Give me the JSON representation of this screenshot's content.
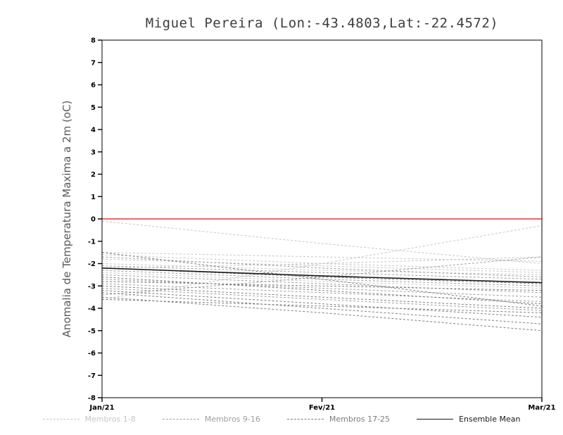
{
  "title": "Miguel Pereira (Lon:-43.4803,Lat:-22.4572)",
  "y_axis_label": "Anomalia de Temperatura Maxima a 2m (oC)",
  "chart_data": {
    "type": "line",
    "title": "Miguel Pereira (Lon:-43.4803,Lat:-22.4572)",
    "xlabel": "",
    "ylabel": "Anomalia de Temperatura Maxima a 2m (oC)",
    "x_tick_labels": [
      "Jan/21",
      "Fev/21",
      "Mar/21"
    ],
    "ylim": [
      -8,
      8
    ],
    "y_ticks": [
      8,
      7,
      6,
      5,
      4,
      3,
      2,
      1,
      0,
      -1,
      -2,
      -3,
      -4,
      -5,
      -6,
      -7,
      -8
    ],
    "grid": false,
    "legend_position": "bottom",
    "zero_line": {
      "y": 0,
      "color": "#e03a3a"
    },
    "frame_color": "#000000",
    "groups": [
      {
        "name": "Membros 1-8",
        "color": "#c6c6c6",
        "style": "dashed",
        "members": [
          [
            -0.1,
            -1.1,
            -2.0
          ],
          [
            -1.5,
            -1.7,
            -1.9
          ],
          [
            -1.6,
            -2.0,
            -2.3
          ],
          [
            -1.8,
            -2.1,
            -2.4
          ],
          [
            -2.0,
            -2.3,
            -2.5
          ],
          [
            -2.2,
            -2.0,
            -1.7
          ],
          [
            -2.4,
            -2.8,
            -3.1
          ],
          [
            -3.6,
            -2.0,
            -0.3
          ]
        ]
      },
      {
        "name": "Membros 9-16",
        "color": "#9e9e9e",
        "style": "dashed",
        "members": [
          [
            -1.7,
            -2.2,
            -2.6
          ],
          [
            -2.1,
            -2.4,
            -2.7
          ],
          [
            -2.3,
            -2.7,
            -3.0
          ],
          [
            -2.5,
            -2.9,
            -3.3
          ],
          [
            -2.7,
            -3.1,
            -3.5
          ],
          [
            -2.9,
            -3.3,
            -3.7
          ],
          [
            -3.1,
            -3.6,
            -4.1
          ],
          [
            -3.4,
            -2.6,
            -1.7
          ]
        ]
      },
      {
        "name": "Membros 17-25",
        "color": "#7d7d7d",
        "style": "dashed",
        "members": [
          [
            -1.5,
            -2.7,
            -3.9
          ],
          [
            -2.2,
            -2.6,
            -2.9
          ],
          [
            -2.6,
            -3.2,
            -3.8
          ],
          [
            -2.8,
            -3.0,
            -3.2
          ],
          [
            -3.0,
            -3.5,
            -4.0
          ],
          [
            -3.2,
            -3.8,
            -4.4
          ],
          [
            -3.3,
            -4.0,
            -4.7
          ],
          [
            -3.5,
            -4.2,
            -5.0
          ],
          [
            -3.6,
            -3.9,
            -4.2
          ]
        ]
      }
    ],
    "mean": {
      "name": "Ensemble Mean",
      "color": "#1a1a1a",
      "style": "solid",
      "values": [
        -2.2,
        -2.55,
        -2.85
      ]
    }
  },
  "legend": [
    {
      "label": "Membros 1-8",
      "color": "#c6c6c6",
      "style": "dashed"
    },
    {
      "label": "Membros 9-16",
      "color": "#9e9e9e",
      "style": "dashed"
    },
    {
      "label": "Membros 17-25",
      "color": "#7d7d7d",
      "style": "dashed"
    },
    {
      "label": "Ensemble Mean",
      "color": "#1a1a1a",
      "style": "solid"
    }
  ]
}
